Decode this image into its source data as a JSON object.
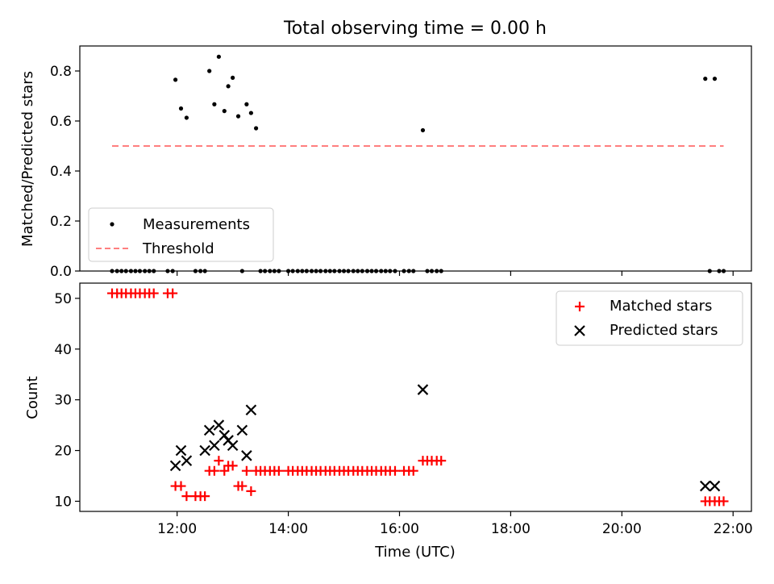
{
  "figure": {
    "title": "Total observing time = 0.00 h"
  },
  "colors": {
    "matched": "#ff0000",
    "predicted": "#000000",
    "threshold": "#ff7f7f",
    "measurement": "#000000"
  },
  "chart_data": [
    {
      "type": "scatter",
      "ylabel": "Matched/Predicted stars",
      "xlim": [
        10.25,
        22.33
      ],
      "ylim": [
        0,
        0.9
      ],
      "x_ticks": [
        12,
        14,
        16,
        18,
        20,
        22
      ],
      "y_ticks": [
        0.0,
        0.2,
        0.4,
        0.6,
        0.8
      ],
      "y_tick_labels": [
        "0.0",
        "0.2",
        "0.4",
        "0.6",
        "0.8"
      ],
      "legend_position": "lower-left",
      "series": [
        {
          "name": "Measurements",
          "marker": "dot",
          "x": [
            10.83,
            10.92,
            11.0,
            11.08,
            11.17,
            11.25,
            11.33,
            11.42,
            11.5,
            11.58,
            11.83,
            11.92,
            11.97,
            12.07,
            12.17,
            12.33,
            12.42,
            12.5,
            12.58,
            12.67,
            12.75,
            12.85,
            12.92,
            13.0,
            13.1,
            13.17,
            13.25,
            13.33,
            13.42,
            13.5,
            13.58,
            13.67,
            13.75,
            13.83,
            14.0,
            14.08,
            14.17,
            14.25,
            14.33,
            14.42,
            14.5,
            14.58,
            14.67,
            14.75,
            14.83,
            14.92,
            15.0,
            15.08,
            15.17,
            15.25,
            15.33,
            15.42,
            15.5,
            15.58,
            15.67,
            15.75,
            15.83,
            15.92,
            16.08,
            16.17,
            16.25,
            16.42,
            16.5,
            16.58,
            16.67,
            16.75,
            21.5,
            21.58,
            21.67,
            21.75,
            21.83
          ],
          "y": [
            0,
            0,
            0,
            0,
            0,
            0,
            0,
            0,
            0,
            0,
            0,
            0,
            0.765,
            0.65,
            0.613,
            0,
            0,
            0,
            0.8,
            0.667,
            0.857,
            0.64,
            0.739,
            0.773,
            0.619,
            0,
            0.667,
            0.632,
            0.571,
            0,
            0,
            0,
            0,
            0,
            0,
            0,
            0,
            0,
            0,
            0,
            0,
            0,
            0,
            0,
            0,
            0,
            0,
            0,
            0,
            0,
            0,
            0,
            0,
            0,
            0,
            0,
            0,
            0,
            0,
            0,
            0,
            0.563,
            0,
            0,
            0,
            0,
            0.769,
            0,
            0.769,
            0,
            0
          ]
        },
        {
          "name": "Threshold",
          "style": "dashed",
          "x": [
            10.83,
            21.83
          ],
          "y": [
            0.5,
            0.5
          ]
        }
      ]
    },
    {
      "type": "scatter",
      "xlabel": "Time (UTC)",
      "ylabel": "Count",
      "xlim": [
        10.25,
        22.33
      ],
      "ylim": [
        8,
        53
      ],
      "x_ticks": [
        12,
        14,
        16,
        18,
        20,
        22
      ],
      "x_tick_labels": [
        "12:00",
        "14:00",
        "16:00",
        "18:00",
        "20:00",
        "22:00"
      ],
      "y_ticks": [
        10,
        20,
        30,
        40,
        50
      ],
      "y_tick_labels": [
        "10",
        "20",
        "30",
        "40",
        "50"
      ],
      "legend_position": "upper-right",
      "series": [
        {
          "name": "Matched stars",
          "marker": "plus",
          "x": [
            10.83,
            10.92,
            11.0,
            11.08,
            11.17,
            11.25,
            11.33,
            11.42,
            11.5,
            11.58,
            11.83,
            11.92,
            11.97,
            12.07,
            12.17,
            12.33,
            12.42,
            12.5,
            12.58,
            12.67,
            12.75,
            12.85,
            12.92,
            13.0,
            13.1,
            13.17,
            13.25,
            13.33,
            13.42,
            13.5,
            13.58,
            13.67,
            13.75,
            13.83,
            14.0,
            14.08,
            14.17,
            14.25,
            14.33,
            14.42,
            14.5,
            14.58,
            14.67,
            14.75,
            14.83,
            14.92,
            15.0,
            15.08,
            15.17,
            15.25,
            15.33,
            15.42,
            15.5,
            15.58,
            15.67,
            15.75,
            15.83,
            15.92,
            16.08,
            16.17,
            16.25,
            16.42,
            16.5,
            16.58,
            16.67,
            16.75,
            21.5,
            21.58,
            21.67,
            21.75,
            21.83
          ],
          "y": [
            51,
            51,
            51,
            51,
            51,
            51,
            51,
            51,
            51,
            51,
            51,
            51,
            13,
            13,
            11,
            11,
            11,
            11,
            16,
            16,
            18,
            16,
            17,
            17,
            13,
            13,
            16,
            12,
            16,
            16,
            16,
            16,
            16,
            16,
            16,
            16,
            16,
            16,
            16,
            16,
            16,
            16,
            16,
            16,
            16,
            16,
            16,
            16,
            16,
            16,
            16,
            16,
            16,
            16,
            16,
            16,
            16,
            16,
            16,
            16,
            16,
            18,
            18,
            18,
            18,
            18,
            10,
            10,
            10,
            10,
            10
          ]
        },
        {
          "name": "Predicted stars",
          "marker": "x",
          "x": [
            11.97,
            12.07,
            12.17,
            12.5,
            12.58,
            12.67,
            12.75,
            12.85,
            12.92,
            13.0,
            13.17,
            13.25,
            13.33,
            16.42,
            21.5,
            21.67
          ],
          "y": [
            17,
            20,
            18,
            20,
            24,
            21,
            25,
            23,
            22,
            21,
            24,
            19,
            28,
            32,
            13,
            13
          ]
        }
      ]
    }
  ]
}
